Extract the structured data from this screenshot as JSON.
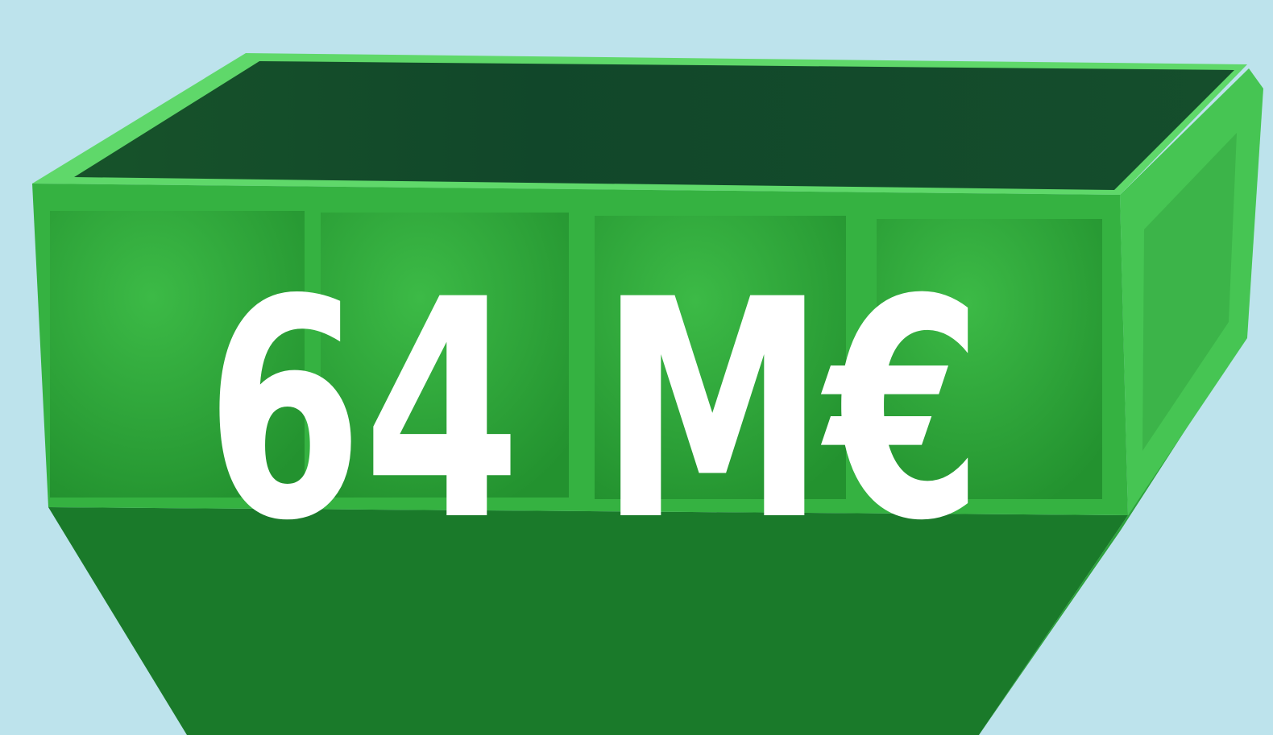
{
  "headline": "64 M€"
}
